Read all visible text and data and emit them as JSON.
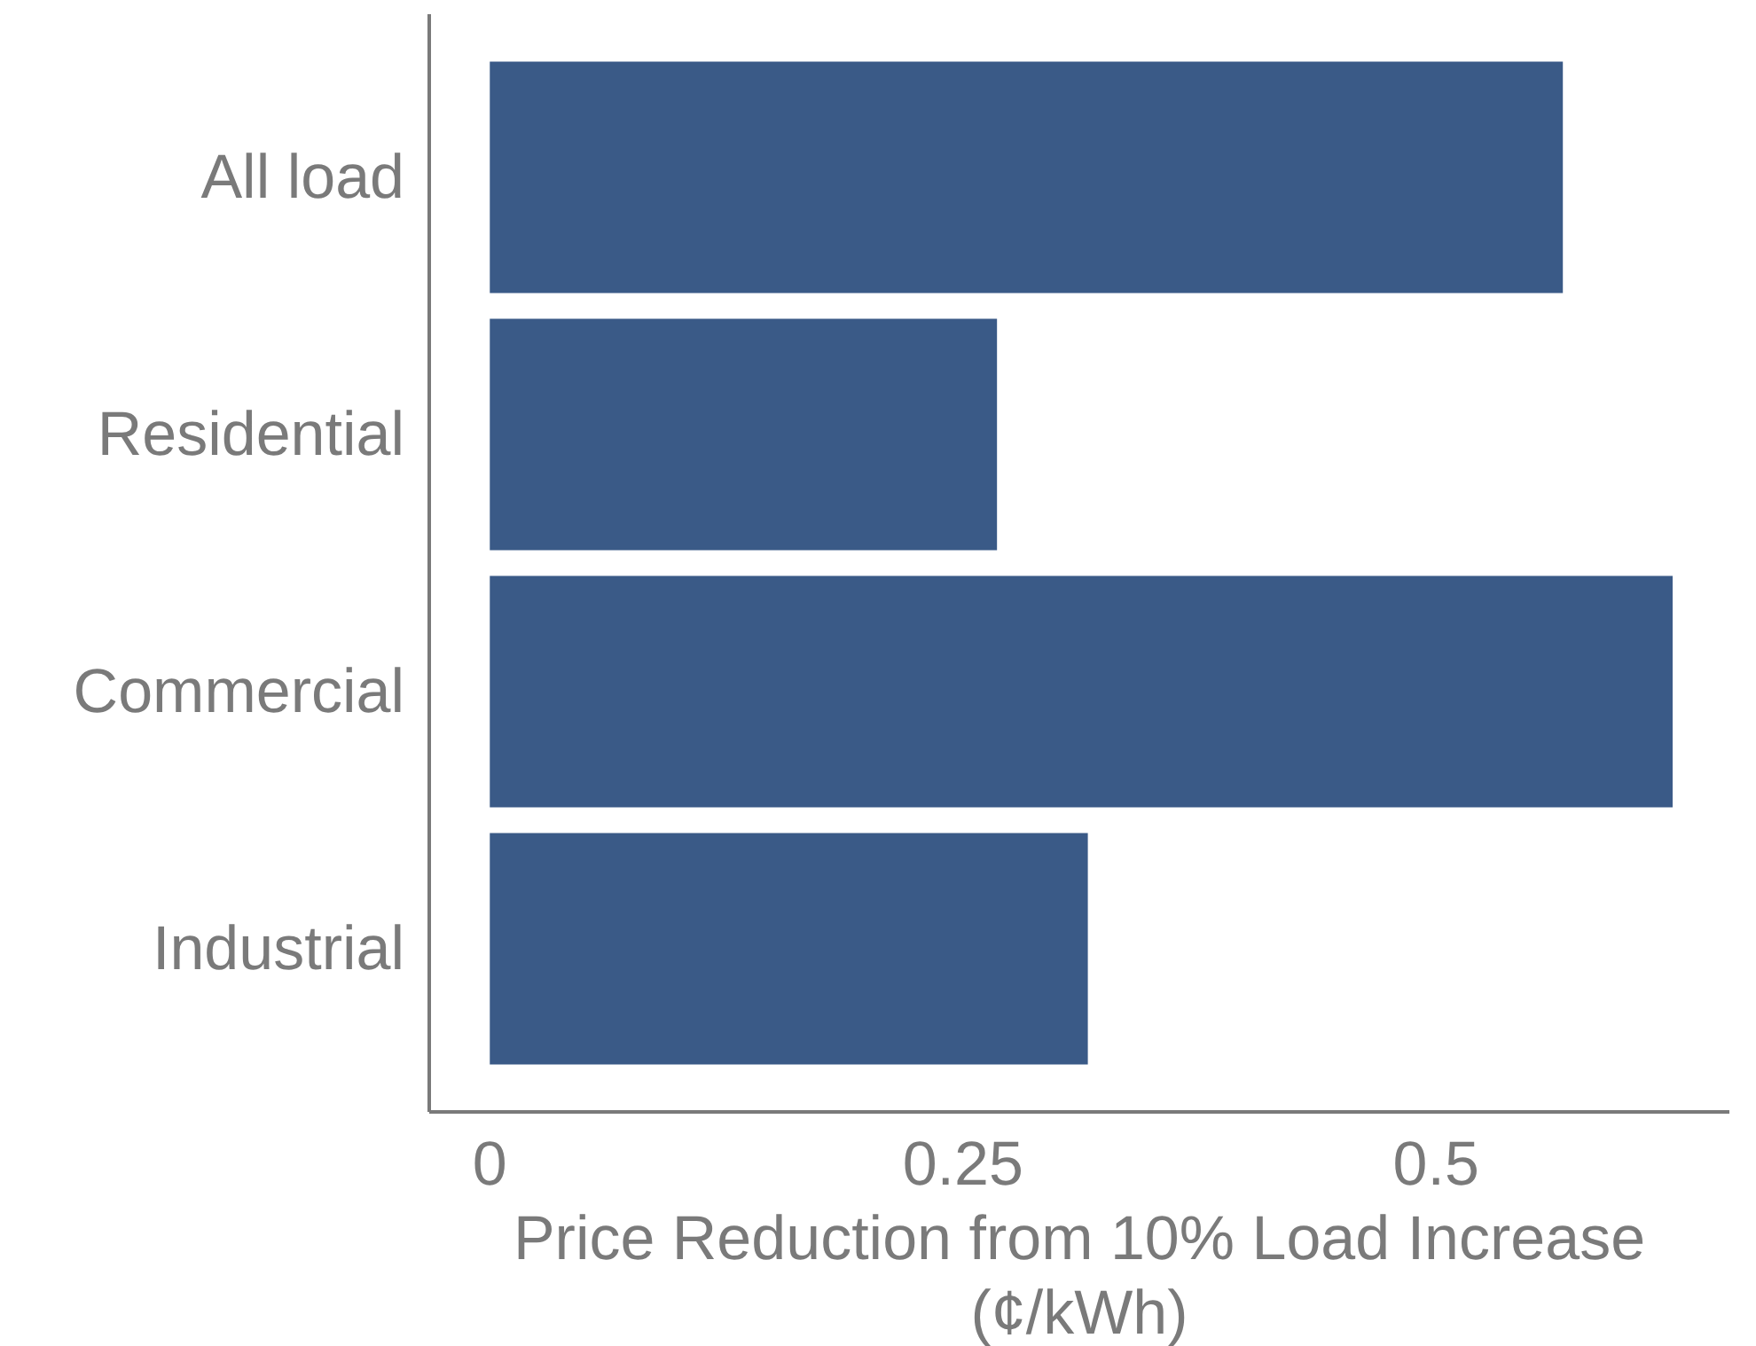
{
  "chart_data": {
    "type": "bar",
    "orientation": "horizontal",
    "categories": [
      "All load",
      "Residential",
      "Commercial",
      "Industrial"
    ],
    "values": [
      0.567,
      0.268,
      0.625,
      0.316
    ],
    "color": "#3a5a87",
    "xlim": [
      -0.032,
      0.655
    ],
    "xticks": [
      0,
      0.25,
      0.5
    ],
    "xlabel": "Price Reduction from 10% Load Increase\n(¢/kWh)",
    "grid": false
  }
}
